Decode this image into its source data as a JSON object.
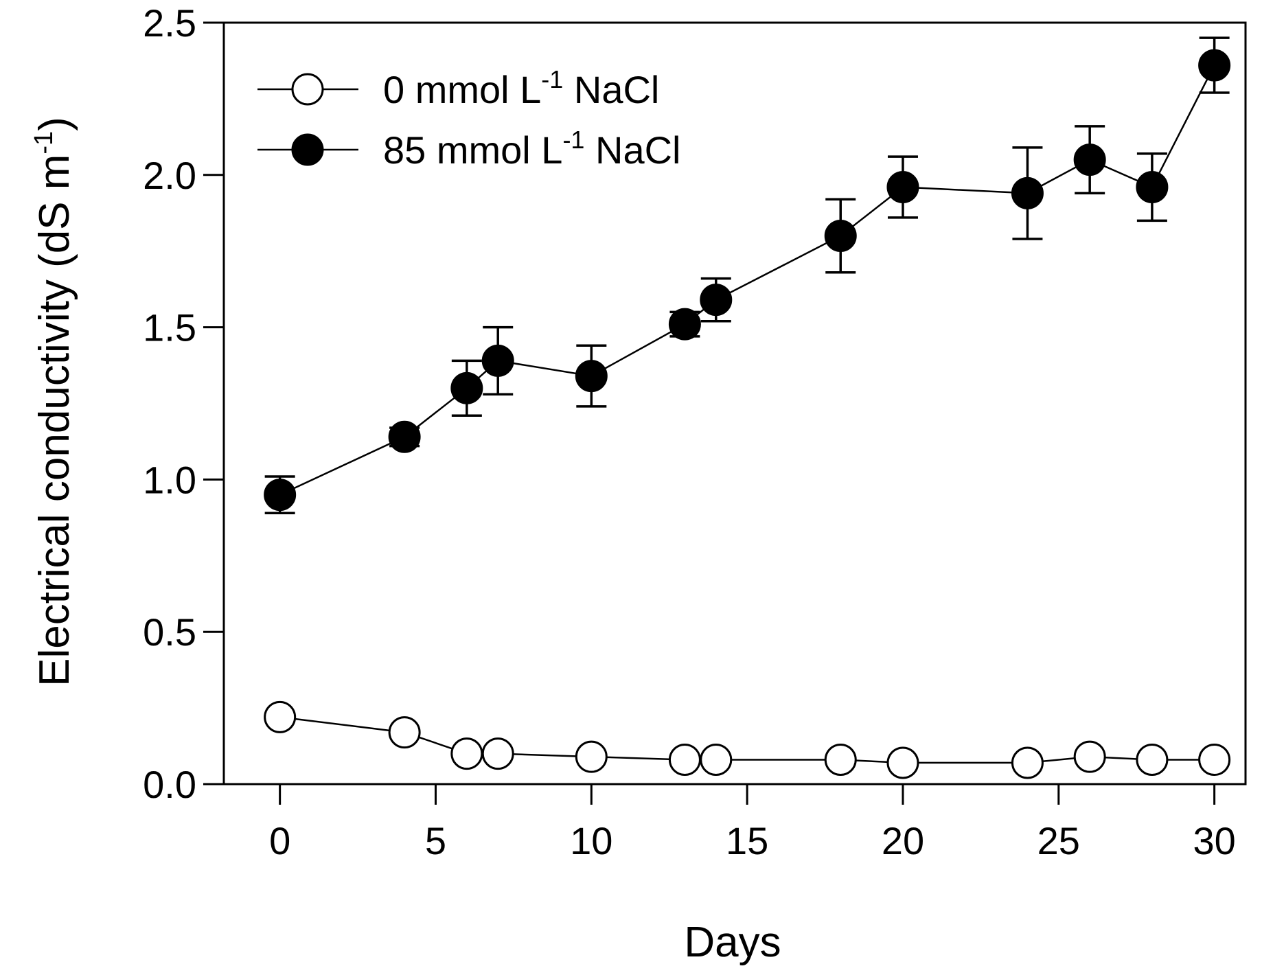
{
  "chart_data": {
    "type": "line",
    "title": "",
    "xlabel": "Days",
    "ylabel": {
      "main": "Electrical conductivity (dS m",
      "sup": "-1",
      "close": ")"
    },
    "xlim": [
      -1.8,
      31
    ],
    "ylim": [
      0,
      2.5
    ],
    "xticks": [
      0,
      5,
      10,
      15,
      20,
      25,
      30
    ],
    "yticks": [
      0.0,
      0.5,
      1.0,
      1.5,
      2.0,
      2.5
    ],
    "ytick_labels": [
      "0.0",
      "0.5",
      "1.0",
      "1.5",
      "2.0",
      "2.5"
    ],
    "x": [
      0,
      4,
      6,
      7,
      10,
      13,
      14,
      18,
      20,
      24,
      26,
      28,
      30
    ],
    "grid": false,
    "legend_position": "top-left",
    "series": [
      {
        "name": "0 mmol L-1 NaCl",
        "legend": {
          "pre": "0 mmol L",
          "sup": "-1",
          "post": " NaCl"
        },
        "marker": "open-circle",
        "values": [
          0.22,
          0.17,
          0.1,
          0.1,
          0.09,
          0.08,
          0.08,
          0.08,
          0.07,
          0.07,
          0.09,
          0.08,
          0.08
        ],
        "errors": []
      },
      {
        "name": "85 mmol L-1 NaCl",
        "legend": {
          "pre": "85 mmol L",
          "sup": "-1",
          "post": " NaCl"
        },
        "marker": "filled-circle",
        "values": [
          0.95,
          1.14,
          1.3,
          1.39,
          1.34,
          1.51,
          1.59,
          1.8,
          1.96,
          1.94,
          2.05,
          1.96,
          2.36
        ],
        "errors": [
          0.06,
          0.03,
          0.09,
          0.11,
          0.1,
          0.04,
          0.07,
          0.12,
          0.1,
          0.15,
          0.11,
          0.11,
          0.09
        ]
      }
    ]
  }
}
